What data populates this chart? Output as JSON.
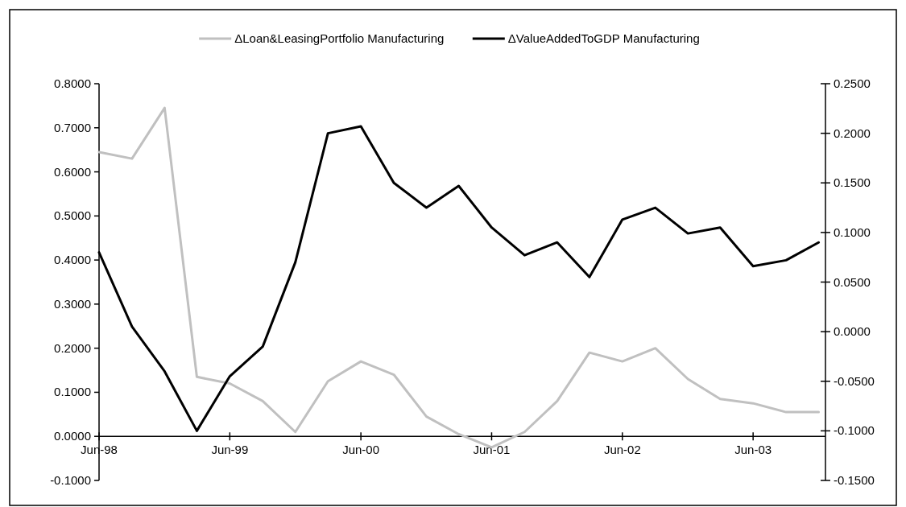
{
  "chart_data": {
    "type": "line",
    "x": [
      "1998-06",
      "1998-09",
      "1998-12",
      "1999-03",
      "1999-06",
      "1999-09",
      "1999-12",
      "2000-03",
      "2000-06",
      "2000-09",
      "2000-12",
      "2001-03",
      "2001-06",
      "2001-09",
      "2001-12",
      "2002-03",
      "2002-06",
      "2002-09",
      "2002-12",
      "2003-03",
      "2003-06",
      "2003-09",
      "2003-12"
    ],
    "series": [
      {
        "name": "ΔLoan&LeasingPortfolio Manufacturing",
        "color": "#c0c0c0",
        "values": [
          0.645,
          0.63,
          0.745,
          0.135,
          0.12,
          0.08,
          0.01,
          0.125,
          0.17,
          0.14,
          0.045,
          0.005,
          -0.025,
          0.01,
          0.08,
          0.19,
          0.17,
          0.2,
          0.13,
          0.085,
          0.075,
          0.055,
          0.055
        ]
      },
      {
        "name": "ΔValueAddedToGDP Manufacturing",
        "color": "#000000",
        "axis": "y2",
        "values": [
          0.08,
          0.005,
          -0.04,
          -0.1,
          -0.045,
          -0.015,
          0.07,
          0.2,
          0.207,
          0.15,
          0.125,
          0.147,
          0.105,
          0.077,
          0.09,
          0.055,
          0.113,
          0.125,
          0.099,
          0.105,
          0.066,
          0.072,
          0.09
        ]
      }
    ],
    "xlim": [
      "1998-06",
      "2003-12-20"
    ],
    "xticks": [
      {
        "value": "1998-06",
        "label": "Jun-98"
      },
      {
        "value": "1999-06",
        "label": "Jun-99"
      },
      {
        "value": "2000-06",
        "label": "Jun-00"
      },
      {
        "value": "2001-06",
        "label": "Jun-01"
      },
      {
        "value": "2002-06",
        "label": "Jun-02"
      },
      {
        "value": "2003-06",
        "label": "Jun-03"
      }
    ],
    "ylim": [
      -0.1,
      0.8
    ],
    "yticks": [
      {
        "value": -0.1,
        "label": "-0.1000"
      },
      {
        "value": 0,
        "label": "0.0000"
      },
      {
        "value": 0.1,
        "label": "0.1000"
      },
      {
        "value": 0.2,
        "label": "0.2000"
      },
      {
        "value": 0.3,
        "label": "0.3000"
      },
      {
        "value": 0.4,
        "label": "0.4000"
      },
      {
        "value": 0.5,
        "label": "0.5000"
      },
      {
        "value": 0.6,
        "label": "0.6000"
      },
      {
        "value": 0.7,
        "label": "0.7000"
      },
      {
        "value": 0.8,
        "label": "0.8000"
      }
    ],
    "y2lim": [
      -0.15,
      0.25
    ],
    "y2ticks": [
      {
        "value": -0.15,
        "label": "-0.1500"
      },
      {
        "value": -0.1,
        "label": "-0.1000"
      },
      {
        "value": -0.05,
        "label": "-0.0500"
      },
      {
        "value": 0,
        "label": "0.0000"
      },
      {
        "value": 0.05,
        "label": "0.0500"
      },
      {
        "value": 0.1,
        "label": "0.1000"
      },
      {
        "value": 0.15,
        "label": "0.1500"
      },
      {
        "value": 0.2,
        "label": "0.2000"
      },
      {
        "value": 0.25,
        "label": "0.2500"
      }
    ],
    "grid": false,
    "legend": "top",
    "marker": "none",
    "line_style": "solid"
  }
}
